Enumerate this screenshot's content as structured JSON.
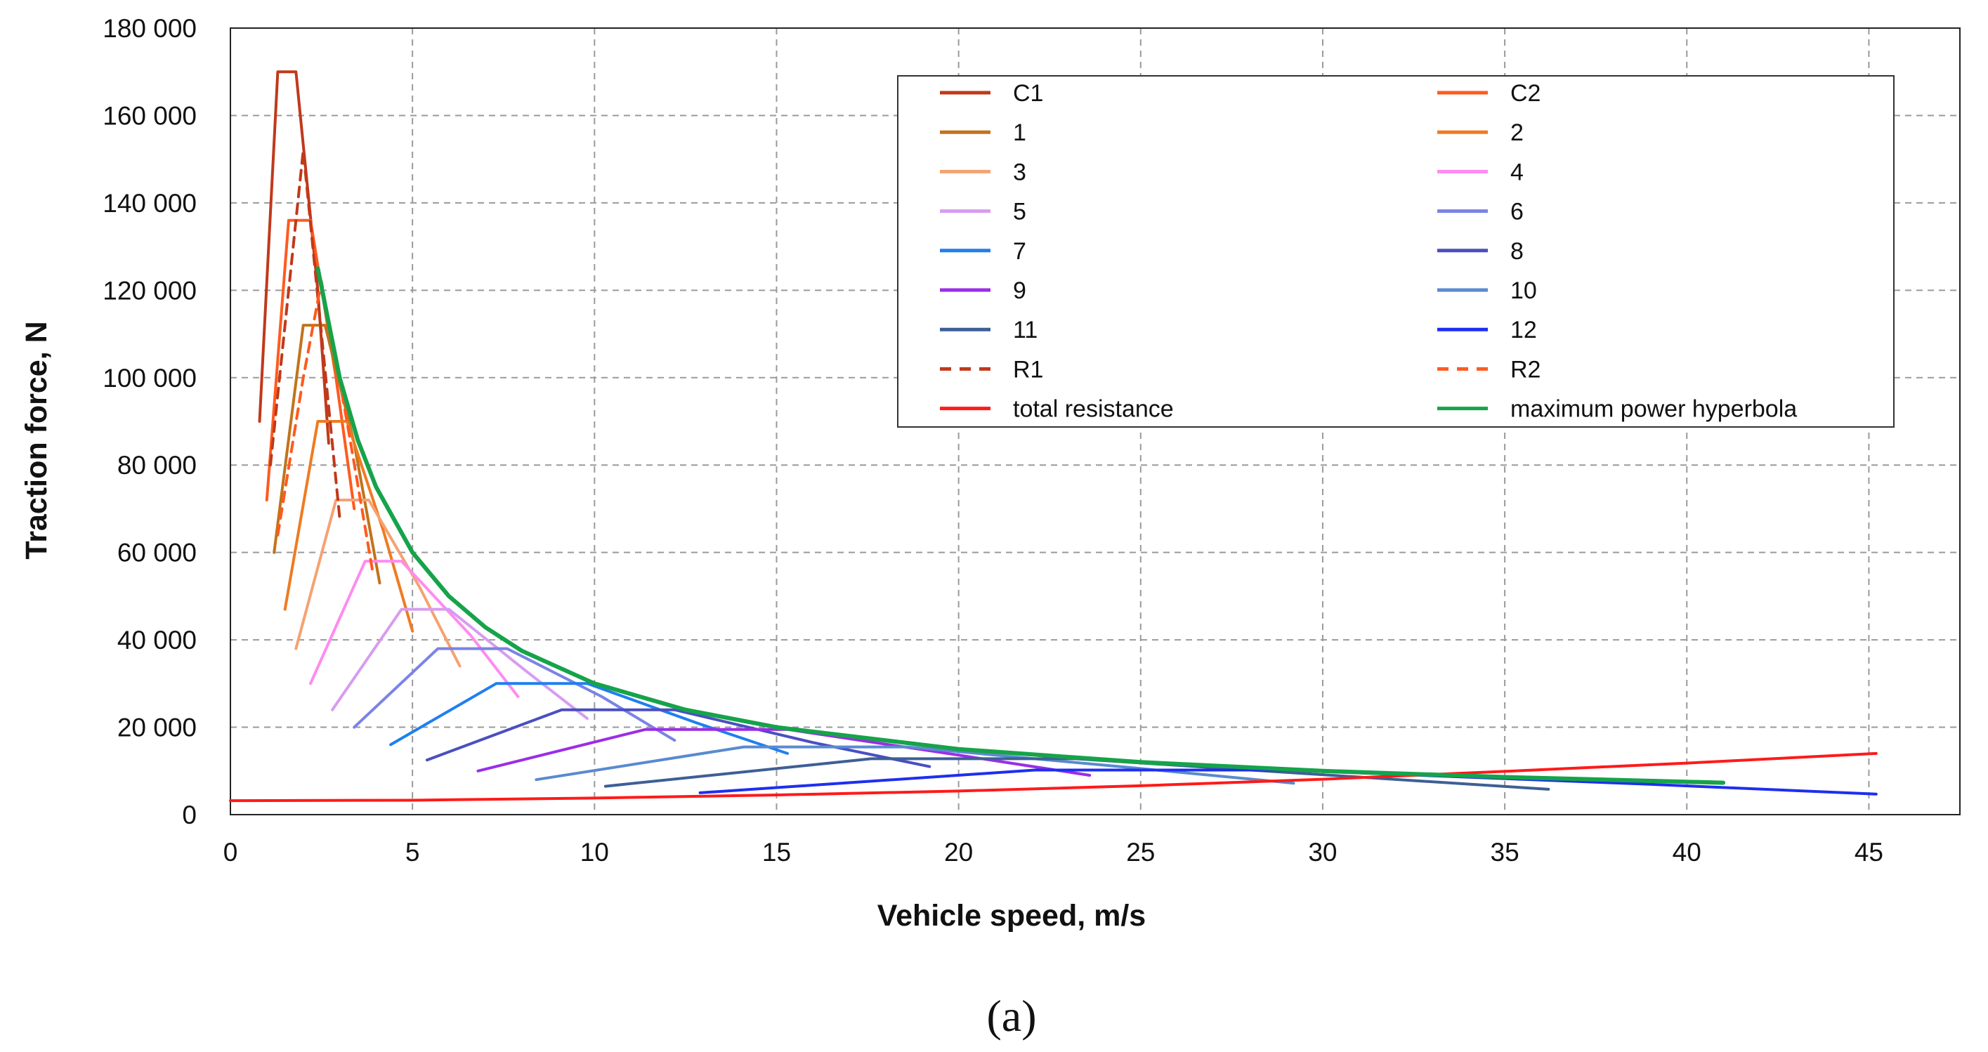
{
  "chart_data": {
    "type": "line",
    "title": "",
    "xlabel": "Vehicle speed, m/s",
    "ylabel": "Traction force, N",
    "xlim": [
      0,
      47.5
    ],
    "ylim": [
      0,
      180000
    ],
    "x_ticks": [
      0,
      5,
      10,
      15,
      20,
      25,
      30,
      35,
      40,
      45
    ],
    "x_tick_labels": [
      "0",
      "5",
      "10",
      "15",
      "20",
      "25",
      "30",
      "35",
      "40",
      "45"
    ],
    "y_ticks": [
      0,
      20000,
      40000,
      60000,
      80000,
      100000,
      120000,
      140000,
      160000,
      180000
    ],
    "y_tick_labels": [
      "0",
      "20 000",
      "40 000",
      "60 000",
      "80 000",
      "100 000",
      "120 000",
      "140 000",
      "160 000",
      "180 000"
    ],
    "grid": true,
    "legend_position": "top-right",
    "caption": "(a)",
    "series": [
      {
        "name": "C1",
        "color": "#c0391b",
        "dash": "solid",
        "points": [
          [
            0.8,
            90000
          ],
          [
            1.3,
            170000
          ],
          [
            1.8,
            170000
          ],
          [
            2.4,
            120000
          ],
          [
            2.7,
            85000
          ]
        ]
      },
      {
        "name": "C2",
        "color": "#ff5a1f",
        "dash": "solid",
        "points": [
          [
            1.0,
            72000
          ],
          [
            1.6,
            136000
          ],
          [
            2.2,
            136000
          ],
          [
            2.9,
            100000
          ],
          [
            3.4,
            70000
          ]
        ]
      },
      {
        "name": "1",
        "color": "#c2731b",
        "dash": "solid",
        "points": [
          [
            1.2,
            60000
          ],
          [
            2.0,
            112000
          ],
          [
            2.6,
            112000
          ],
          [
            3.4,
            85000
          ],
          [
            4.1,
            53000
          ]
        ]
      },
      {
        "name": "2",
        "color": "#ef7b22",
        "dash": "solid",
        "points": [
          [
            1.5,
            47000
          ],
          [
            2.4,
            90000
          ],
          [
            3.2,
            90000
          ],
          [
            4.2,
            65000
          ],
          [
            5.0,
            42000
          ]
        ]
      },
      {
        "name": "3",
        "color": "#f4a372",
        "dash": "solid",
        "points": [
          [
            1.8,
            38000
          ],
          [
            2.9,
            72000
          ],
          [
            3.8,
            72000
          ],
          [
            5.2,
            52000
          ],
          [
            6.3,
            34000
          ]
        ]
      },
      {
        "name": "4",
        "color": "#ff8bf0",
        "dash": "solid",
        "points": [
          [
            2.2,
            30000
          ],
          [
            3.7,
            58000
          ],
          [
            4.7,
            58000
          ],
          [
            6.6,
            41000
          ],
          [
            7.9,
            27000
          ]
        ]
      },
      {
        "name": "5",
        "color": "#d79cf0",
        "dash": "solid",
        "points": [
          [
            2.8,
            24000
          ],
          [
            4.7,
            47000
          ],
          [
            6.0,
            47000
          ],
          [
            8.1,
            33000
          ],
          [
            9.8,
            22000
          ]
        ]
      },
      {
        "name": "6",
        "color": "#7b83e6",
        "dash": "solid",
        "points": [
          [
            3.4,
            20000
          ],
          [
            5.7,
            38000
          ],
          [
            7.6,
            38000
          ],
          [
            10.2,
            27000
          ],
          [
            12.2,
            17000
          ]
        ]
      },
      {
        "name": "7",
        "color": "#1f7ff0",
        "dash": "solid",
        "points": [
          [
            4.4,
            16000
          ],
          [
            7.3,
            30000
          ],
          [
            9.8,
            30000
          ],
          [
            12.8,
            21000
          ],
          [
            15.3,
            14000
          ]
        ]
      },
      {
        "name": "8",
        "color": "#4a4fc0",
        "dash": "solid",
        "points": [
          [
            5.4,
            12500
          ],
          [
            9.1,
            24000
          ],
          [
            12.2,
            24000
          ],
          [
            16.0,
            16500
          ],
          [
            19.2,
            11000
          ]
        ]
      },
      {
        "name": "9",
        "color": "#9a2ee6",
        "dash": "solid",
        "points": [
          [
            6.8,
            10000
          ],
          [
            11.4,
            19500
          ],
          [
            15.3,
            19500
          ],
          [
            20.1,
            13500
          ],
          [
            23.6,
            9000
          ]
        ]
      },
      {
        "name": "10",
        "color": "#5a8ad0",
        "dash": "solid",
        "points": [
          [
            8.4,
            8000
          ],
          [
            14.1,
            15500
          ],
          [
            18.6,
            15500
          ],
          [
            24.8,
            10700
          ],
          [
            29.2,
            7200
          ]
        ]
      },
      {
        "name": "11",
        "color": "#3e5f95",
        "dash": "solid",
        "points": [
          [
            10.3,
            6500
          ],
          [
            17.6,
            12800
          ],
          [
            23.2,
            12800
          ],
          [
            31.0,
            8600
          ],
          [
            36.2,
            5800
          ]
        ]
      },
      {
        "name": "12",
        "color": "#1e2ef0",
        "dash": "solid",
        "points": [
          [
            12.9,
            5000
          ],
          [
            22.1,
            10200
          ],
          [
            29.0,
            10200
          ],
          [
            38.8,
            7000
          ],
          [
            45.2,
            4700
          ]
        ]
      },
      {
        "name": "R1",
        "color": "#c0391b",
        "dash": "dashed",
        "points": [
          [
            1.1,
            80000
          ],
          [
            1.6,
            120000
          ],
          [
            2.0,
            152000
          ],
          [
            2.5,
            110000
          ],
          [
            3.0,
            68000
          ]
        ]
      },
      {
        "name": "R2",
        "color": "#ff5a1f",
        "dash": "dashed",
        "points": [
          [
            1.3,
            64000
          ],
          [
            2.0,
            100000
          ],
          [
            2.5,
            122000
          ],
          [
            3.2,
            90000
          ],
          [
            3.9,
            56000
          ]
        ]
      },
      {
        "name": "total resistance",
        "color": "#ff1a1a",
        "dash": "solid",
        "points": [
          [
            0,
            3200
          ],
          [
            5,
            3300
          ],
          [
            10,
            3800
          ],
          [
            15,
            4500
          ],
          [
            20,
            5400
          ],
          [
            25,
            6600
          ],
          [
            30,
            8100
          ],
          [
            35,
            9900
          ],
          [
            40,
            11800
          ],
          [
            45.2,
            14000
          ]
        ]
      },
      {
        "name": "maximum power hyperbola",
        "color": "#16a34a",
        "dash": "solid",
        "points": [
          [
            2.4,
            125000
          ],
          [
            3,
            100000
          ],
          [
            3.5,
            85700
          ],
          [
            4,
            75000
          ],
          [
            5,
            60000
          ],
          [
            6,
            50000
          ],
          [
            7,
            42900
          ],
          [
            8,
            37500
          ],
          [
            10,
            30000
          ],
          [
            12.5,
            24000
          ],
          [
            15,
            20000
          ],
          [
            20,
            15000
          ],
          [
            25,
            12000
          ],
          [
            30,
            10000
          ],
          [
            35,
            8600
          ],
          [
            41,
            7300
          ]
        ]
      }
    ]
  }
}
